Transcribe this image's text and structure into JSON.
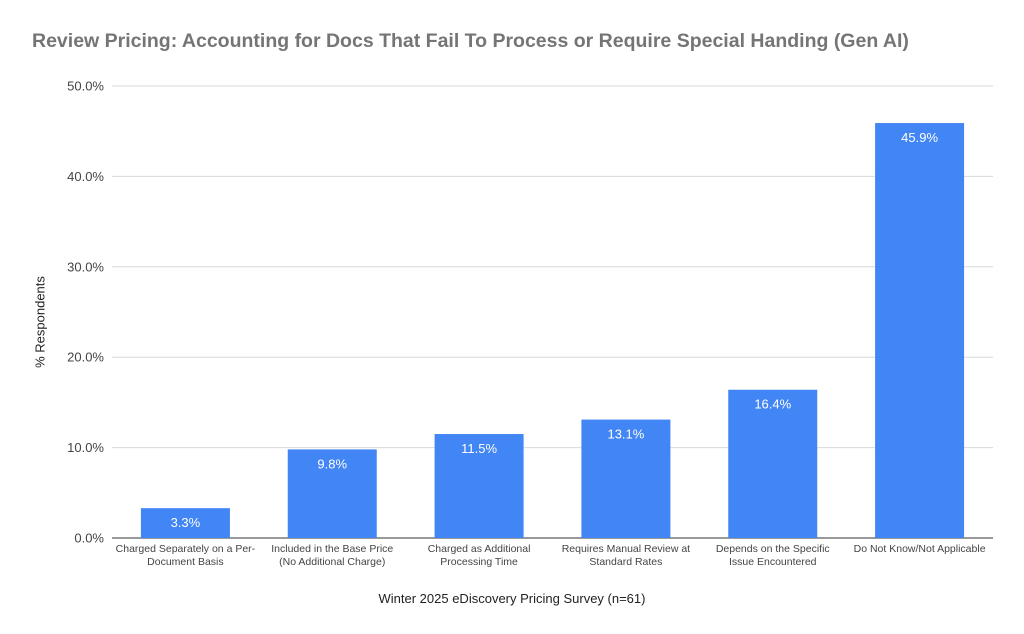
{
  "chart_data": {
    "type": "bar",
    "title": "Review Pricing: Accounting for Docs That Fail To Process or Require Special Handing (Gen AI)",
    "xlabel": "Winter 2025 eDiscovery Pricing Survey (n=61)",
    "ylabel": "% Respondents",
    "ylim": [
      0,
      50
    ],
    "yticks": [
      "0.0%",
      "10.0%",
      "20.0%",
      "30.0%",
      "40.0%",
      "50.0%"
    ],
    "grid": true,
    "legend": "none",
    "bar_color": "#4285f4",
    "categories": [
      [
        "Charged Separately on a Per-",
        "Document Basis"
      ],
      [
        "Included in the Base Price",
        "(No Additional Charge)"
      ],
      [
        "Charged as Additional",
        "Processing Time"
      ],
      [
        "Requires Manual Review at",
        "Standard Rates"
      ],
      [
        "Depends on the Specific",
        "Issue Encountered"
      ],
      [
        "Do Not Know/Not Applicable"
      ]
    ],
    "values": [
      3.3,
      9.8,
      11.5,
      13.1,
      16.4,
      45.9
    ],
    "value_labels": [
      "3.3%",
      "9.8%",
      "11.5%",
      "13.1%",
      "16.4%",
      "45.9%"
    ]
  }
}
